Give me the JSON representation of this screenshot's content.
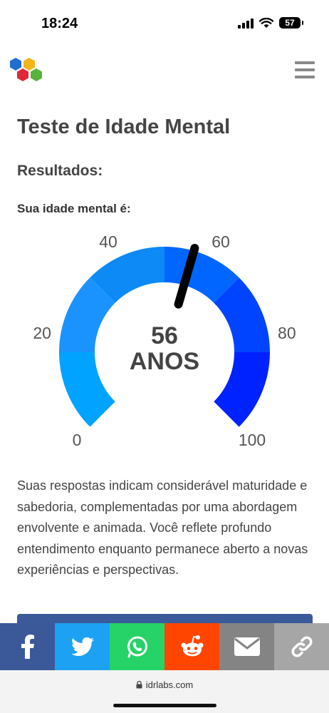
{
  "status_bar": {
    "time": "18:24",
    "battery": "57",
    "icons": [
      "signal-icon",
      "wifi-icon",
      "battery-icon"
    ]
  },
  "header": {
    "logo": "idrlabs-logo",
    "menu_icon": "hamburger-menu-icon"
  },
  "page": {
    "title": "Teste de Idade Mental",
    "results_heading": "Resultados:",
    "age_label": "Sua idade mental é:"
  },
  "gauge": {
    "value": 56,
    "value_text": "56",
    "unit_text": "ANOS",
    "min": 0,
    "max": 100,
    "ticks": [
      "0",
      "20",
      "40",
      "60",
      "80",
      "100"
    ],
    "band_colors": [
      "#00a3ff",
      "#1a93ff",
      "#0d8af5",
      "#0066ff",
      "#0044ff",
      "#0022ff"
    ],
    "needle_color": "#000000"
  },
  "description": "Suas respostas indicam considerável maturidade e sabedoria, complementadas por uma abordagem envolvente e animada. Você reflete profundo entendimento enquanto permanece aberto a novas experiências e perspectivas.",
  "share_bar": [
    {
      "name": "facebook",
      "icon": "facebook-icon",
      "color": "#3b5998"
    },
    {
      "name": "twitter",
      "icon": "twitter-icon",
      "color": "#1da1f2"
    },
    {
      "name": "whatsapp",
      "icon": "whatsapp-icon",
      "color": "#25d366"
    },
    {
      "name": "reddit",
      "icon": "reddit-icon",
      "color": "#ff4500"
    },
    {
      "name": "email",
      "icon": "email-icon",
      "color": "#848484"
    },
    {
      "name": "copy-link",
      "icon": "link-icon",
      "color": "#a6a6a6"
    }
  ],
  "browser": {
    "url": "idrlabs.com",
    "lock_icon": "lock-icon"
  }
}
